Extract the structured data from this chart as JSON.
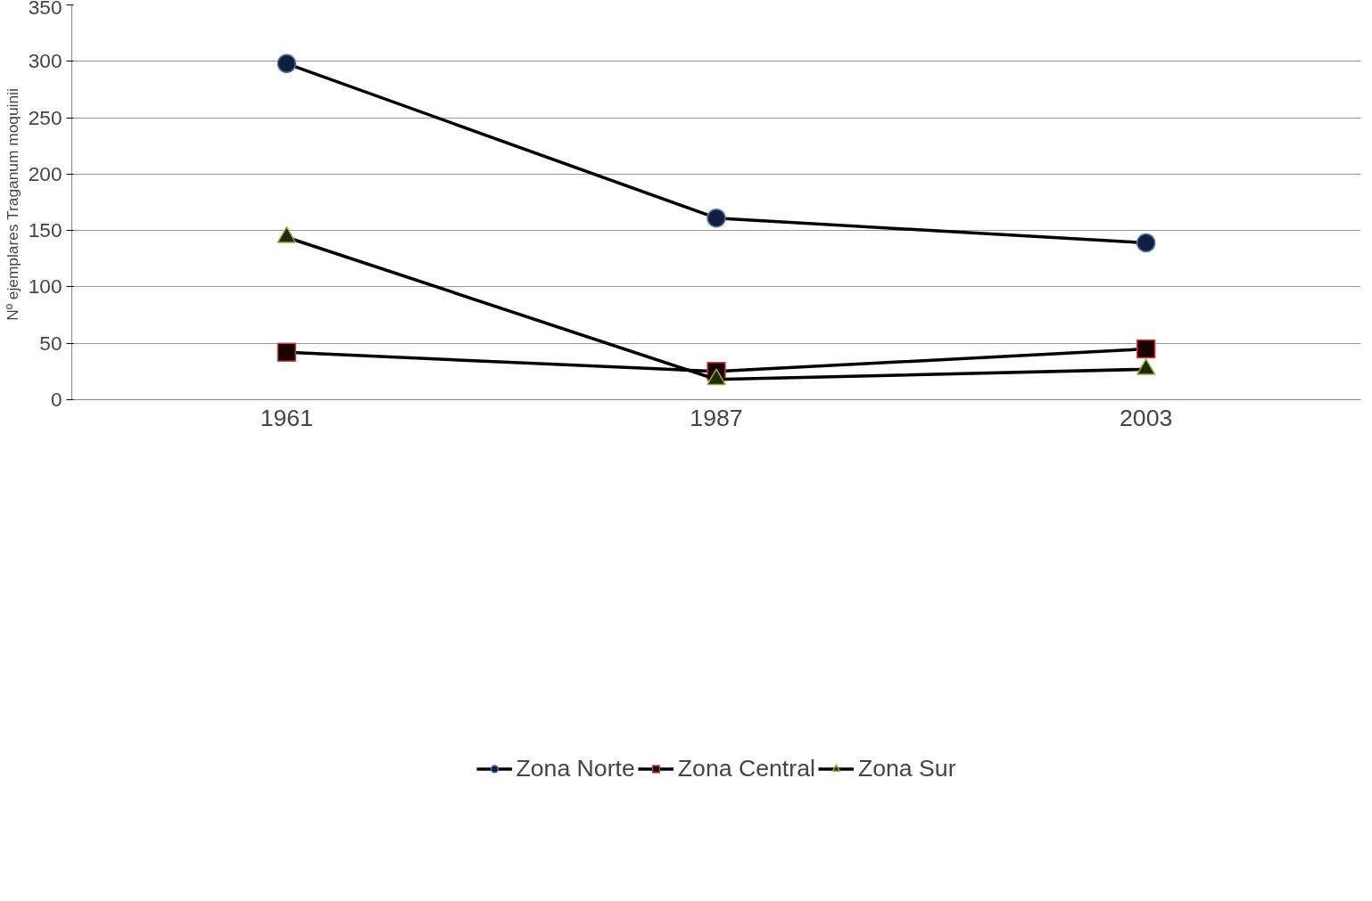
{
  "chart_data": {
    "type": "line",
    "ylabel": "Nº ejemplares Traganum  moquinii",
    "categories": [
      "1961",
      "1987",
      "2003"
    ],
    "series": [
      {
        "name": "Zona Norte",
        "color": "#0f1f3d",
        "marker": "circle",
        "values": [
          298,
          161,
          139
        ]
      },
      {
        "name": "Zona Central",
        "color": "#1a0000",
        "marker": "square",
        "values": [
          42,
          25,
          45
        ]
      },
      {
        "name": "Zona Sur",
        "color": "#1f2a0a",
        "marker": "triangle",
        "values": [
          144,
          18,
          27
        ]
      }
    ],
    "ylim": [
      0,
      350
    ],
    "yticks": [
      0,
      50,
      100,
      150,
      200,
      250,
      300,
      350
    ],
    "grid": "y",
    "legend": "bottom",
    "line_style": "solid"
  }
}
